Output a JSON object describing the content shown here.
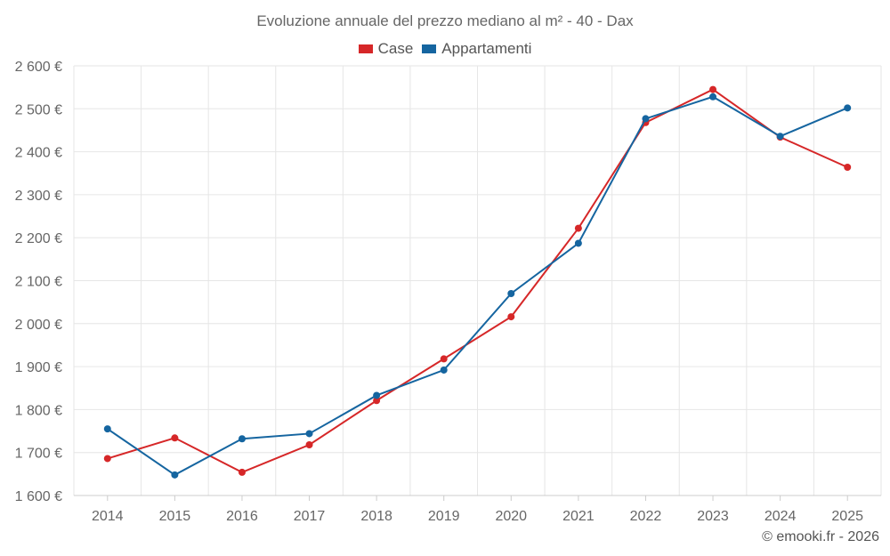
{
  "chart_data": {
    "type": "line",
    "title": "Evoluzione annuale del prezzo mediano al m² - 40 - Dax",
    "categories": [
      "2014",
      "2015",
      "2016",
      "2017",
      "2018",
      "2019",
      "2020",
      "2021",
      "2022",
      "2023",
      "2024",
      "2025"
    ],
    "series": [
      {
        "name": "Case",
        "color": "#d62728",
        "values": [
          1686,
          1734,
          1654,
          1718,
          1821,
          1918,
          2016,
          2222,
          2468,
          2545,
          2434,
          2364
        ]
      },
      {
        "name": "Appartamenti",
        "color": "#1565a0",
        "values": [
          1755,
          1648,
          1732,
          1744,
          1833,
          1892,
          2070,
          2187,
          2477,
          2528,
          2436,
          2502
        ]
      }
    ],
    "ylim": [
      1600,
      2600
    ],
    "yticks": [
      1600,
      1700,
      1800,
      1900,
      2000,
      2100,
      2200,
      2300,
      2400,
      2500,
      2600
    ],
    "ytick_labels": [
      "1 600 €",
      "1 700 €",
      "1 800 €",
      "1 900 €",
      "2 000 €",
      "2 100 €",
      "2 200 €",
      "2 300 €",
      "2 400 €",
      "2 500 €",
      "2 600 €"
    ],
    "xlabel": "",
    "ylabel": "",
    "grid": true,
    "legend_position": "top-center"
  },
  "credit": "© emooki.fr - 2026"
}
